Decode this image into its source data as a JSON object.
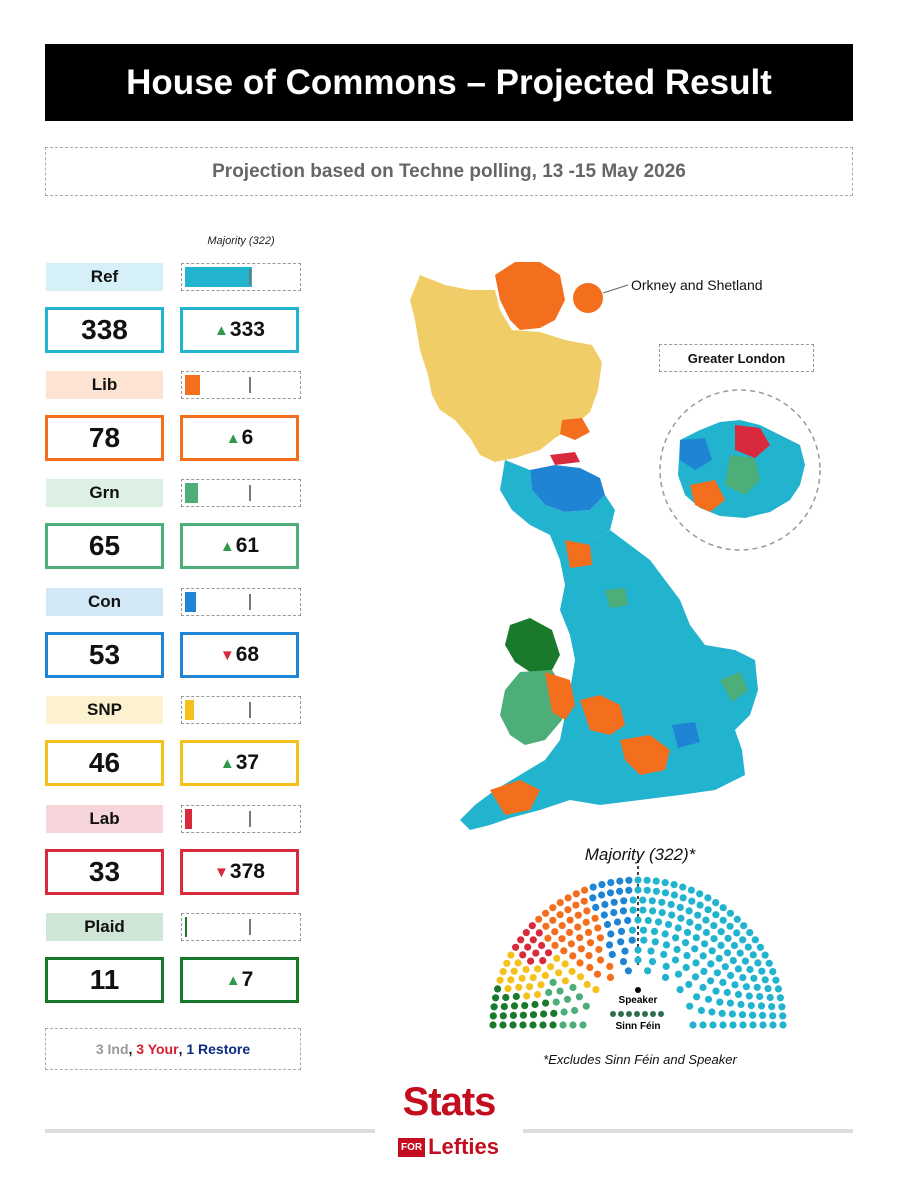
{
  "title": "House of Commons – Projected Result",
  "subtitle": "Projection based on Techne polling, 13 -15 May 2026",
  "majority_label": "Majority (322)",
  "chart_data": {
    "type": "bar",
    "majority": 322,
    "total_seats": 650,
    "parties": [
      {
        "name": "Ref",
        "seats": "338",
        "change": "333",
        "direction": "up",
        "color": "#22b3cf",
        "light": "#d6f0f7"
      },
      {
        "name": "Lib",
        "seats": "78",
        "change": "6",
        "direction": "up",
        "color": "#f36f1e",
        "light": "#fde3d2"
      },
      {
        "name": "Grn",
        "seats": "65",
        "change": "61",
        "direction": "up",
        "color": "#4dae7a",
        "light": "#dcf0e4"
      },
      {
        "name": "Con",
        "seats": "53",
        "change": "68",
        "direction": "down",
        "color": "#1e84d3",
        "light": "#d3e8f7"
      },
      {
        "name": "SNP",
        "seats": "46",
        "change": "37",
        "direction": "up",
        "color": "#f5c11d",
        "light": "#fdf2d0"
      },
      {
        "name": "Lab",
        "seats": "33",
        "change": "378",
        "direction": "down",
        "color": "#d82a3c",
        "light": "#f8d5da"
      },
      {
        "name": "Plaid",
        "seats": "11",
        "change": "7",
        "direction": "up",
        "color": "#1a7a2c",
        "light": "#cfe5d5"
      }
    ]
  },
  "others": [
    {
      "text": "3 Ind",
      "color": "#999999"
    },
    {
      "text": "3 Your",
      "color": "#d6202e"
    },
    {
      "text": "1 Restore",
      "color": "#0b2a80"
    }
  ],
  "map": {
    "orkney_label": "Orkney and Shetland",
    "london_label": "Greater London"
  },
  "parliament": {
    "title": "Majority (322)*",
    "speaker_label": "Speaker",
    "sinn_fein_label": "Sinn Féin",
    "footnote": "*Excludes Sinn Féin and Speaker"
  },
  "logo": {
    "stats": "Stats",
    "for": "FOR",
    "lefties": "Lefties"
  },
  "colors": {
    "ref": "#22b3cf",
    "lib": "#f36f1e",
    "grn": "#4dae7a",
    "con": "#1e84d3",
    "snp": "#f5c11d",
    "lab": "#d82a3c",
    "plaid": "#1a7a2c",
    "snp_map": "#f0cd67",
    "sinn_fein": "#2d6e4e",
    "speaker": "#000000"
  }
}
